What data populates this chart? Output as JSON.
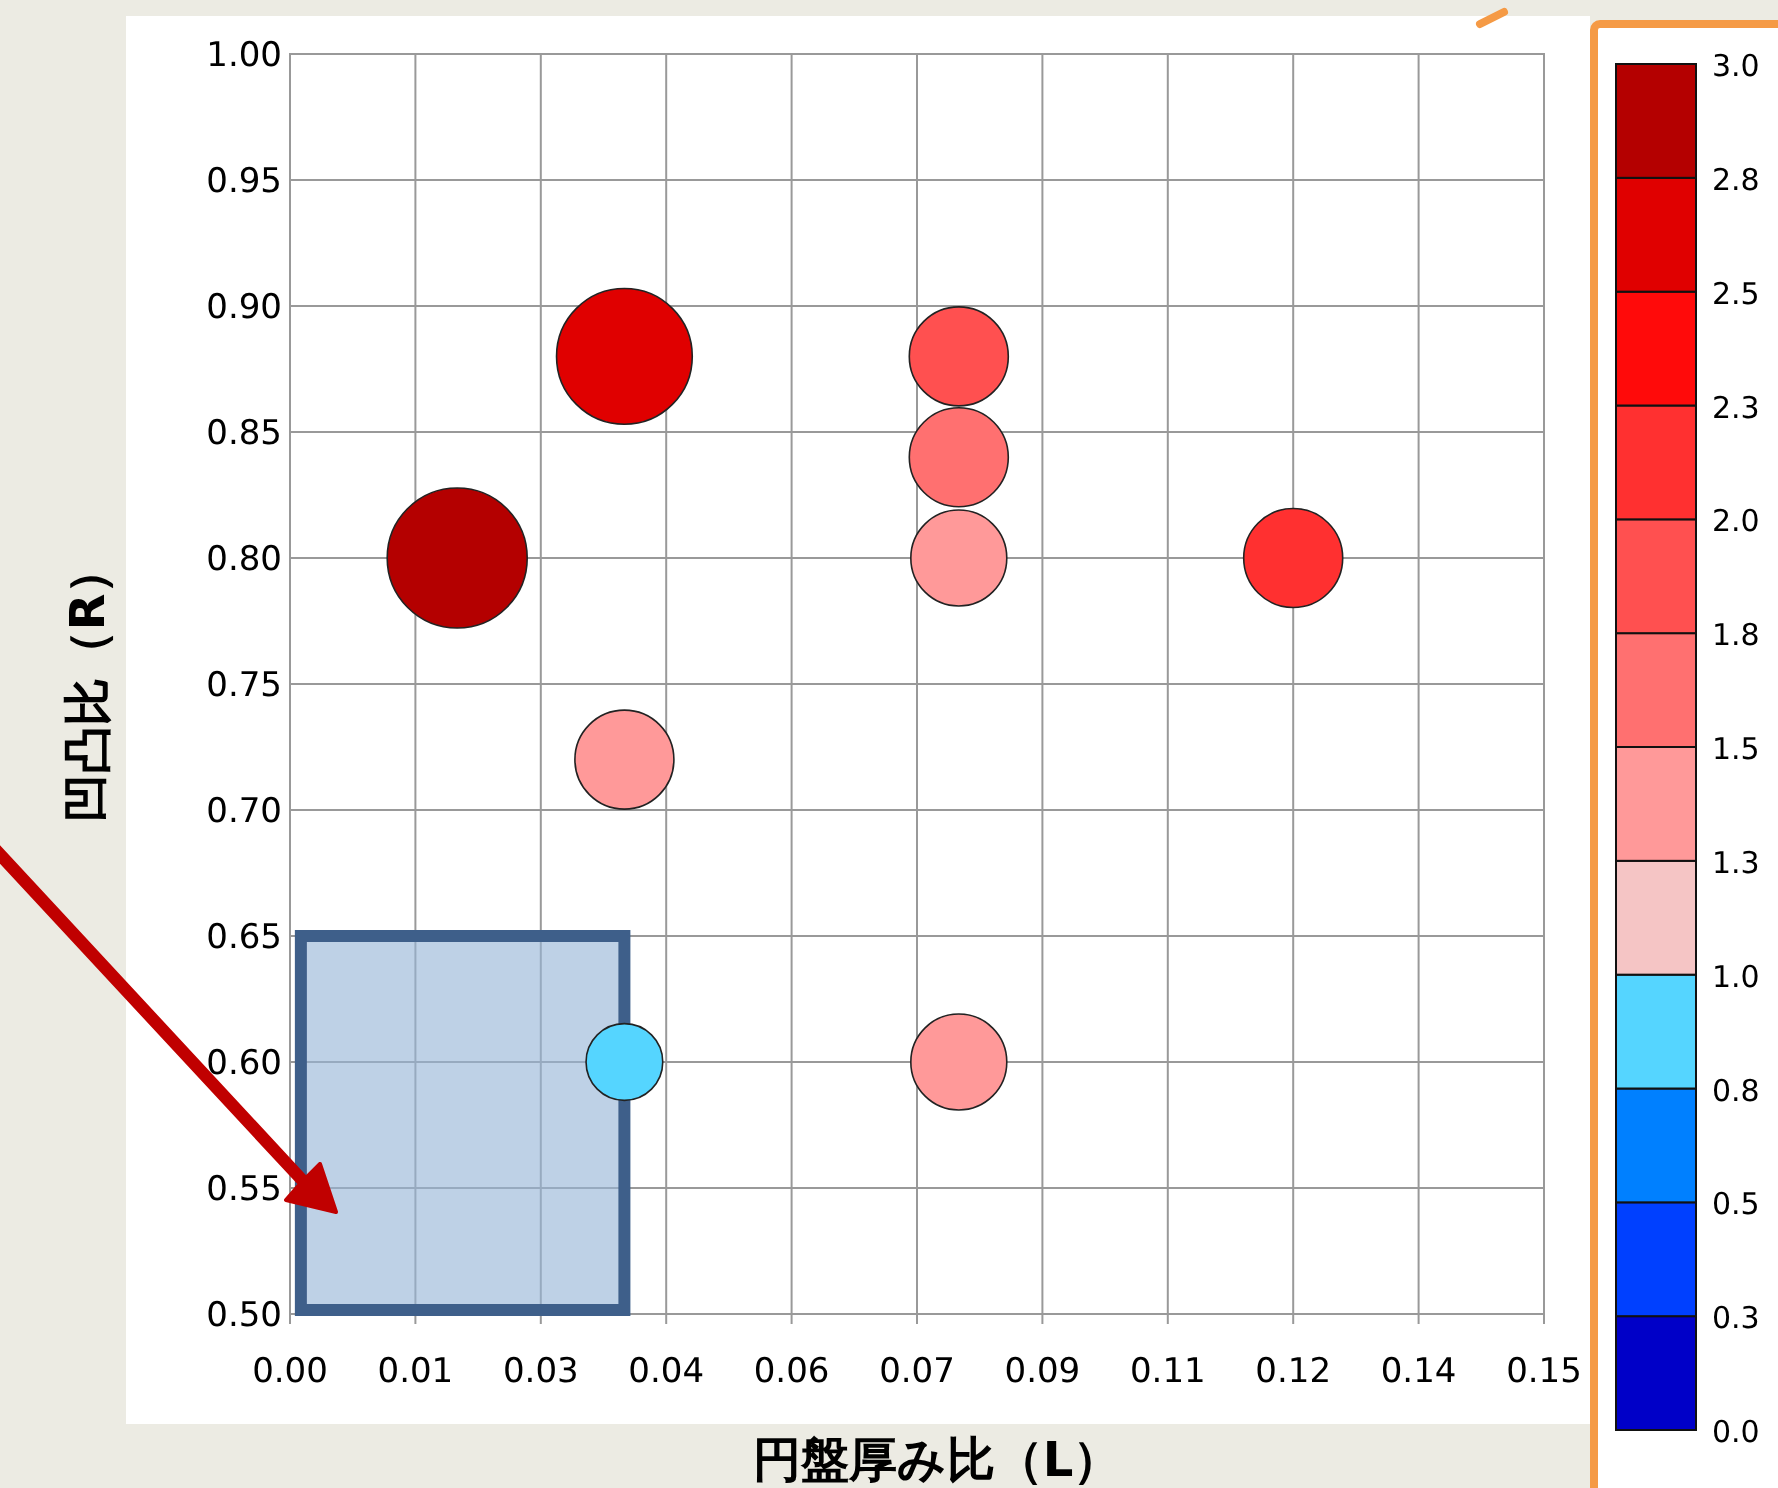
{
  "chart_data": {
    "type": "bubble",
    "xlabel": "円盤厚み比（L）",
    "ylabel": "凹凸比（R）",
    "x": [
      0.02,
      0.04,
      0.04,
      0.04,
      0.08,
      0.08,
      0.08,
      0.08,
      0.12
    ],
    "values": [
      0.8,
      0.88,
      0.72,
      0.6,
      0.88,
      0.84,
      0.8,
      0.6,
      0.8
    ],
    "sizes": [
      1,
      0.94,
      0.5,
      0.3,
      0.5,
      0.5,
      0.47,
      0.47,
      0.5
    ],
    "cvalues": [
      2.9,
      2.6,
      1.4,
      0.9,
      1.9,
      1.7,
      1.4,
      1.4,
      2.0
    ],
    "xlim": [
      0,
      0.15
    ],
    "ylim": [
      0.5,
      1.0
    ],
    "xticks": [
      {
        "value": 0,
        "label": "0.00"
      },
      {
        "value": 0.015,
        "label": "0.01"
      },
      {
        "value": 0.03,
        "label": "0.03"
      },
      {
        "value": 0.045,
        "label": "0.04"
      },
      {
        "value": 0.06,
        "label": "0.06"
      },
      {
        "value": 0.075,
        "label": "0.07"
      },
      {
        "value": 0.09,
        "label": "0.09"
      },
      {
        "value": 0.105,
        "label": "0.11"
      },
      {
        "value": 0.12,
        "label": "0.12"
      },
      {
        "value": 0.135,
        "label": "0.14"
      },
      {
        "value": 0.15,
        "label": "0.15"
      }
    ],
    "yticks": [
      {
        "value": 0.5,
        "label": "0.50"
      },
      {
        "value": 0.55,
        "label": "0.55"
      },
      {
        "value": 0.6,
        "label": "0.60"
      },
      {
        "value": 0.65,
        "label": "0.65"
      },
      {
        "value": 0.7,
        "label": "0.70"
      },
      {
        "value": 0.75,
        "label": "0.75"
      },
      {
        "value": 0.8,
        "label": "0.80"
      },
      {
        "value": 0.85,
        "label": "0.85"
      },
      {
        "value": 0.9,
        "label": "0.90"
      },
      {
        "value": 0.95,
        "label": "0.95"
      },
      {
        "value": 1.0,
        "label": "1.00"
      }
    ],
    "clim": [
      0,
      3
    ],
    "cticks": [
      {
        "value": 0,
        "label": "0.0"
      },
      {
        "value": 0.25,
        "label": "0.3"
      },
      {
        "value": 0.5,
        "label": "0.5"
      },
      {
        "value": 0.75,
        "label": "0.8"
      },
      {
        "value": 1.0,
        "label": "1.0"
      },
      {
        "value": 1.25,
        "label": "1.3"
      },
      {
        "value": 1.5,
        "label": "1.5"
      },
      {
        "value": 1.75,
        "label": "1.8"
      },
      {
        "value": 2.0,
        "label": "2.0"
      },
      {
        "value": 2.25,
        "label": "2.3"
      },
      {
        "value": 2.5,
        "label": "2.5"
      },
      {
        "value": 2.75,
        "label": "2.8"
      },
      {
        "value": 3.0,
        "label": "3.0"
      }
    ],
    "grid": true,
    "marker": "circle"
  }
}
